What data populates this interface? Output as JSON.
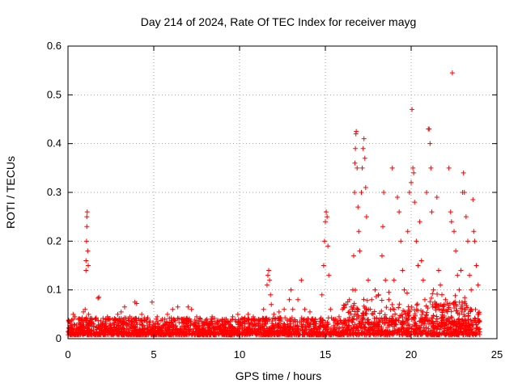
{
  "chart_data": {
    "type": "scatter",
    "title": "Day 214 of 2024, Rate Of TEC Index for receiver mayg",
    "xlabel": "GPS time / hours",
    "ylabel": "ROTI / TECUs",
    "xlim": [
      0,
      25
    ],
    "ylim": [
      0,
      0.6
    ],
    "x_ticks": [
      0,
      5,
      10,
      15,
      20,
      25
    ],
    "x_tick_labels": [
      "0",
      "5",
      "10",
      "15",
      "20",
      "25"
    ],
    "y_ticks": [
      0,
      0.1,
      0.2,
      0.3,
      0.4,
      0.5,
      0.6
    ],
    "y_tick_labels": [
      "0",
      "0.1",
      "0.2",
      "0.3",
      "0.4",
      "0.5",
      "0.6"
    ],
    "grid": true,
    "marker": "+",
    "color": "#ff0000",
    "series": [
      {
        "name": "ROTI",
        "points": [
          [
            0.05,
            0.012
          ],
          [
            0.12,
            0.035
          ],
          [
            0.2,
            0.025
          ],
          [
            0.3,
            0.05
          ],
          [
            0.4,
            0.045
          ],
          [
            0.5,
            0.028
          ],
          [
            0.6,
            0.02
          ],
          [
            0.7,
            0.03
          ],
          [
            0.8,
            0.025
          ],
          [
            0.9,
            0.055
          ],
          [
            0.95,
            0.04
          ],
          [
            1.0,
            0.06
          ],
          [
            1.05,
            0.14
          ],
          [
            1.05,
            0.16
          ],
          [
            1.08,
            0.2
          ],
          [
            1.1,
            0.23
          ],
          [
            1.1,
            0.25
          ],
          [
            1.12,
            0.26
          ],
          [
            1.15,
            0.18
          ],
          [
            1.18,
            0.15
          ],
          [
            1.2,
            0.05
          ],
          [
            1.4,
            0.03
          ],
          [
            1.6,
            0.04
          ],
          [
            1.75,
            0.083
          ],
          [
            1.8,
            0.085
          ],
          [
            2.0,
            0.03
          ],
          [
            2.3,
            0.045
          ],
          [
            2.6,
            0.04
          ],
          [
            2.9,
            0.05
          ],
          [
            3.1,
            0.055
          ],
          [
            3.3,
            0.065
          ],
          [
            3.6,
            0.045
          ],
          [
            3.9,
            0.075
          ],
          [
            4.0,
            0.072
          ],
          [
            4.3,
            0.05
          ],
          [
            4.6,
            0.04
          ],
          [
            4.9,
            0.075
          ],
          [
            5.2,
            0.045
          ],
          [
            5.5,
            0.04
          ],
          [
            5.8,
            0.05
          ],
          [
            6.1,
            0.06
          ],
          [
            6.4,
            0.065
          ],
          [
            6.7,
            0.04
          ],
          [
            7.0,
            0.065
          ],
          [
            7.2,
            0.06
          ],
          [
            7.5,
            0.045
          ],
          [
            7.8,
            0.035
          ],
          [
            8.1,
            0.04
          ],
          [
            8.4,
            0.045
          ],
          [
            8.7,
            0.035
          ],
          [
            9.0,
            0.04
          ],
          [
            9.3,
            0.035
          ],
          [
            9.6,
            0.045
          ],
          [
            9.9,
            0.05
          ],
          [
            10.2,
            0.04
          ],
          [
            10.5,
            0.05
          ],
          [
            10.8,
            0.045
          ],
          [
            11.1,
            0.04
          ],
          [
            11.4,
            0.06
          ],
          [
            11.6,
            0.11
          ],
          [
            11.65,
            0.13
          ],
          [
            11.7,
            0.14
          ],
          [
            11.75,
            0.12
          ],
          [
            11.8,
            0.09
          ],
          [
            11.85,
            0.07
          ],
          [
            12.0,
            0.05
          ],
          [
            12.3,
            0.055
          ],
          [
            12.6,
            0.06
          ],
          [
            12.9,
            0.08
          ],
          [
            13.0,
            0.1
          ],
          [
            13.1,
            0.06
          ],
          [
            13.4,
            0.08
          ],
          [
            13.6,
            0.12
          ],
          [
            13.8,
            0.06
          ],
          [
            14.1,
            0.055
          ],
          [
            14.4,
            0.04
          ],
          [
            14.7,
            0.04
          ],
          [
            14.8,
            0.09
          ],
          [
            14.9,
            0.15
          ],
          [
            14.95,
            0.2
          ],
          [
            15.0,
            0.24
          ],
          [
            15.05,
            0.26
          ],
          [
            15.1,
            0.25
          ],
          [
            15.15,
            0.19
          ],
          [
            15.2,
            0.13
          ],
          [
            15.3,
            0.06
          ],
          [
            15.5,
            0.04
          ],
          [
            15.8,
            0.045
          ],
          [
            16.0,
            0.06
          ],
          [
            16.2,
            0.07
          ],
          [
            16.4,
            0.08
          ],
          [
            16.6,
            0.1
          ],
          [
            16.65,
            0.17
          ],
          [
            16.7,
            0.3
          ],
          [
            16.72,
            0.36
          ],
          [
            16.75,
            0.39
          ],
          [
            16.78,
            0.42
          ],
          [
            16.8,
            0.425
          ],
          [
            16.85,
            0.35
          ],
          [
            16.9,
            0.27
          ],
          [
            16.95,
            0.22
          ],
          [
            17.0,
            0.18
          ],
          [
            17.1,
            0.3
          ],
          [
            17.15,
            0.35
          ],
          [
            17.2,
            0.39
          ],
          [
            17.25,
            0.41
          ],
          [
            17.3,
            0.37
          ],
          [
            17.35,
            0.31
          ],
          [
            17.4,
            0.25
          ],
          [
            17.5,
            0.12
          ],
          [
            17.7,
            0.08
          ],
          [
            17.9,
            0.1
          ],
          [
            18.1,
            0.09
          ],
          [
            18.3,
            0.17
          ],
          [
            18.35,
            0.23
          ],
          [
            18.4,
            0.3
          ],
          [
            18.5,
            0.12
          ],
          [
            18.7,
            0.08
          ],
          [
            18.9,
            0.35
          ],
          [
            19.0,
            0.12
          ],
          [
            19.2,
            0.29
          ],
          [
            19.3,
            0.26
          ],
          [
            19.4,
            0.2
          ],
          [
            19.5,
            0.14
          ],
          [
            19.6,
            0.1
          ],
          [
            19.8,
            0.22
          ],
          [
            19.9,
            0.3
          ],
          [
            20.0,
            0.32
          ],
          [
            20.05,
            0.47
          ],
          [
            20.1,
            0.35
          ],
          [
            20.15,
            0.34
          ],
          [
            20.2,
            0.28
          ],
          [
            20.3,
            0.2
          ],
          [
            20.4,
            0.15
          ],
          [
            20.5,
            0.24
          ],
          [
            20.6,
            0.16
          ],
          [
            20.7,
            0.12
          ],
          [
            20.8,
            0.08
          ],
          [
            20.9,
            0.3
          ],
          [
            21.0,
            0.43
          ],
          [
            21.05,
            0.43
          ],
          [
            21.1,
            0.4
          ],
          [
            21.15,
            0.35
          ],
          [
            21.2,
            0.26
          ],
          [
            21.3,
            0.1
          ],
          [
            21.5,
            0.29
          ],
          [
            21.6,
            0.14
          ],
          [
            21.7,
            0.11
          ],
          [
            21.9,
            0.06
          ],
          [
            22.0,
            0.08
          ],
          [
            22.2,
            0.35
          ],
          [
            22.3,
            0.26
          ],
          [
            22.35,
            0.24
          ],
          [
            22.4,
            0.545
          ],
          [
            22.5,
            0.22
          ],
          [
            22.6,
            0.18
          ],
          [
            22.7,
            0.13
          ],
          [
            22.8,
            0.1
          ],
          [
            22.9,
            0.14
          ],
          [
            23.0,
            0.3
          ],
          [
            23.05,
            0.34
          ],
          [
            23.1,
            0.3
          ],
          [
            23.2,
            0.25
          ],
          [
            23.3,
            0.2
          ],
          [
            23.4,
            0.13
          ],
          [
            23.5,
            0.1
          ],
          [
            23.6,
            0.285
          ],
          [
            23.65,
            0.22
          ],
          [
            23.7,
            0.2
          ],
          [
            23.8,
            0.15
          ],
          [
            23.9,
            0.11
          ],
          [
            23.95,
            0.05
          ],
          [
            24.0,
            0.02
          ]
        ]
      }
    ]
  }
}
